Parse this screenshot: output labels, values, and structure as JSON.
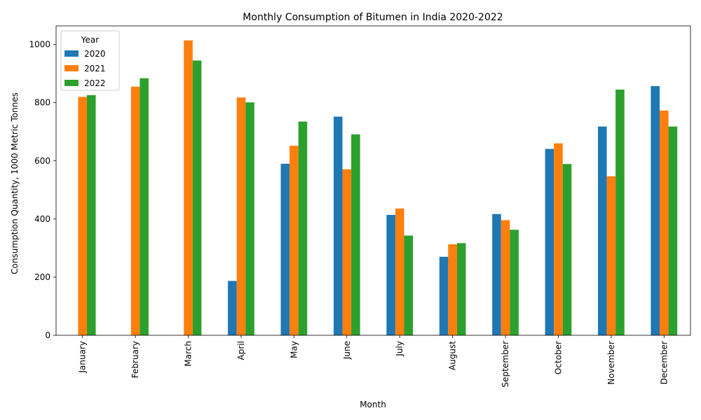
{
  "chart_data": {
    "type": "bar",
    "title": "Monthly Consumption of Bitumen in India 2020-2022",
    "xlabel": "Month",
    "ylabel": "Consumption Quantity, 1000 Metric Tonnes",
    "ylim": [
      0,
      1064
    ],
    "yticks": [
      0,
      200,
      400,
      600,
      800,
      1000
    ],
    "categories": [
      "January",
      "February",
      "March",
      "April",
      "May",
      "June",
      "July",
      "August",
      "September",
      "October",
      "November",
      "December"
    ],
    "legend": {
      "title": "Year",
      "placement": "top-left"
    },
    "grid": false,
    "series": [
      {
        "name": "2020",
        "color": "#1f77b4",
        "values": [
          null,
          null,
          null,
          187,
          590,
          752,
          414,
          270,
          417,
          641,
          718,
          857
        ]
      },
      {
        "name": "2021",
        "color": "#ff7f0e",
        "values": [
          820,
          855,
          1014,
          818,
          652,
          571,
          436,
          313,
          396,
          660,
          547,
          773
        ]
      },
      {
        "name": "2022",
        "color": "#2ca02c",
        "values": [
          826,
          884,
          945,
          801,
          735,
          691,
          343,
          317,
          363,
          589,
          845,
          718
        ]
      }
    ]
  }
}
